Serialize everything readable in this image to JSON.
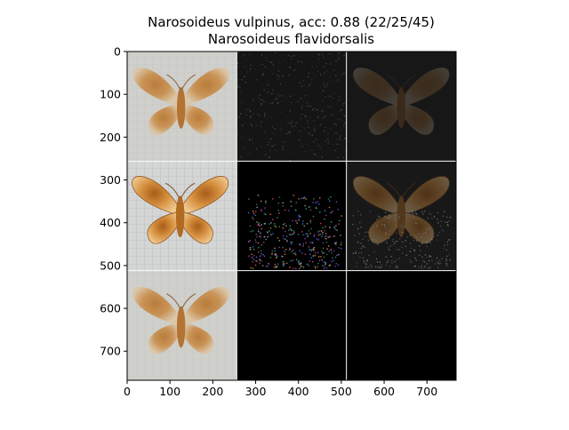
{
  "chart_data": {
    "type": "image_grid",
    "title_lines": [
      "Narosoideus vulpinus, acc: 0.88 (22/25/45)",
      "Narosoideus flavidorsalis"
    ],
    "grid": {
      "rows": 3,
      "cols": 3,
      "cell_size": 256
    },
    "xlim": [
      0,
      768
    ],
    "ylim": [
      768,
      0
    ],
    "x_ticks": [
      0,
      100,
      200,
      300,
      400,
      500,
      600,
      700
    ],
    "y_ticks": [
      0,
      100,
      200,
      300,
      400,
      500,
      600,
      700
    ],
    "panels": [
      {
        "row": 0,
        "col": 0,
        "kind": "moth-average-photo",
        "opacity": 1.0
      },
      {
        "row": 0,
        "col": 1,
        "kind": "dark-saliency-noise",
        "opacity": 0.22
      },
      {
        "row": 0,
        "col": 2,
        "kind": "dark-moth-overlay",
        "opacity": 0.25
      },
      {
        "row": 1,
        "col": 0,
        "kind": "moth-specimen-photo",
        "opacity": 1.0
      },
      {
        "row": 1,
        "col": 1,
        "kind": "colored-saliency-points",
        "opacity": 0.9
      },
      {
        "row": 1,
        "col": 2,
        "kind": "dark-moth-overlay-points",
        "opacity": 0.45
      },
      {
        "row": 2,
        "col": 0,
        "kind": "moth-average-photo",
        "opacity": 1.0
      },
      {
        "row": 2,
        "col": 1,
        "kind": "black",
        "opacity": 0
      },
      {
        "row": 2,
        "col": 2,
        "kind": "black",
        "opacity": 0
      }
    ]
  }
}
